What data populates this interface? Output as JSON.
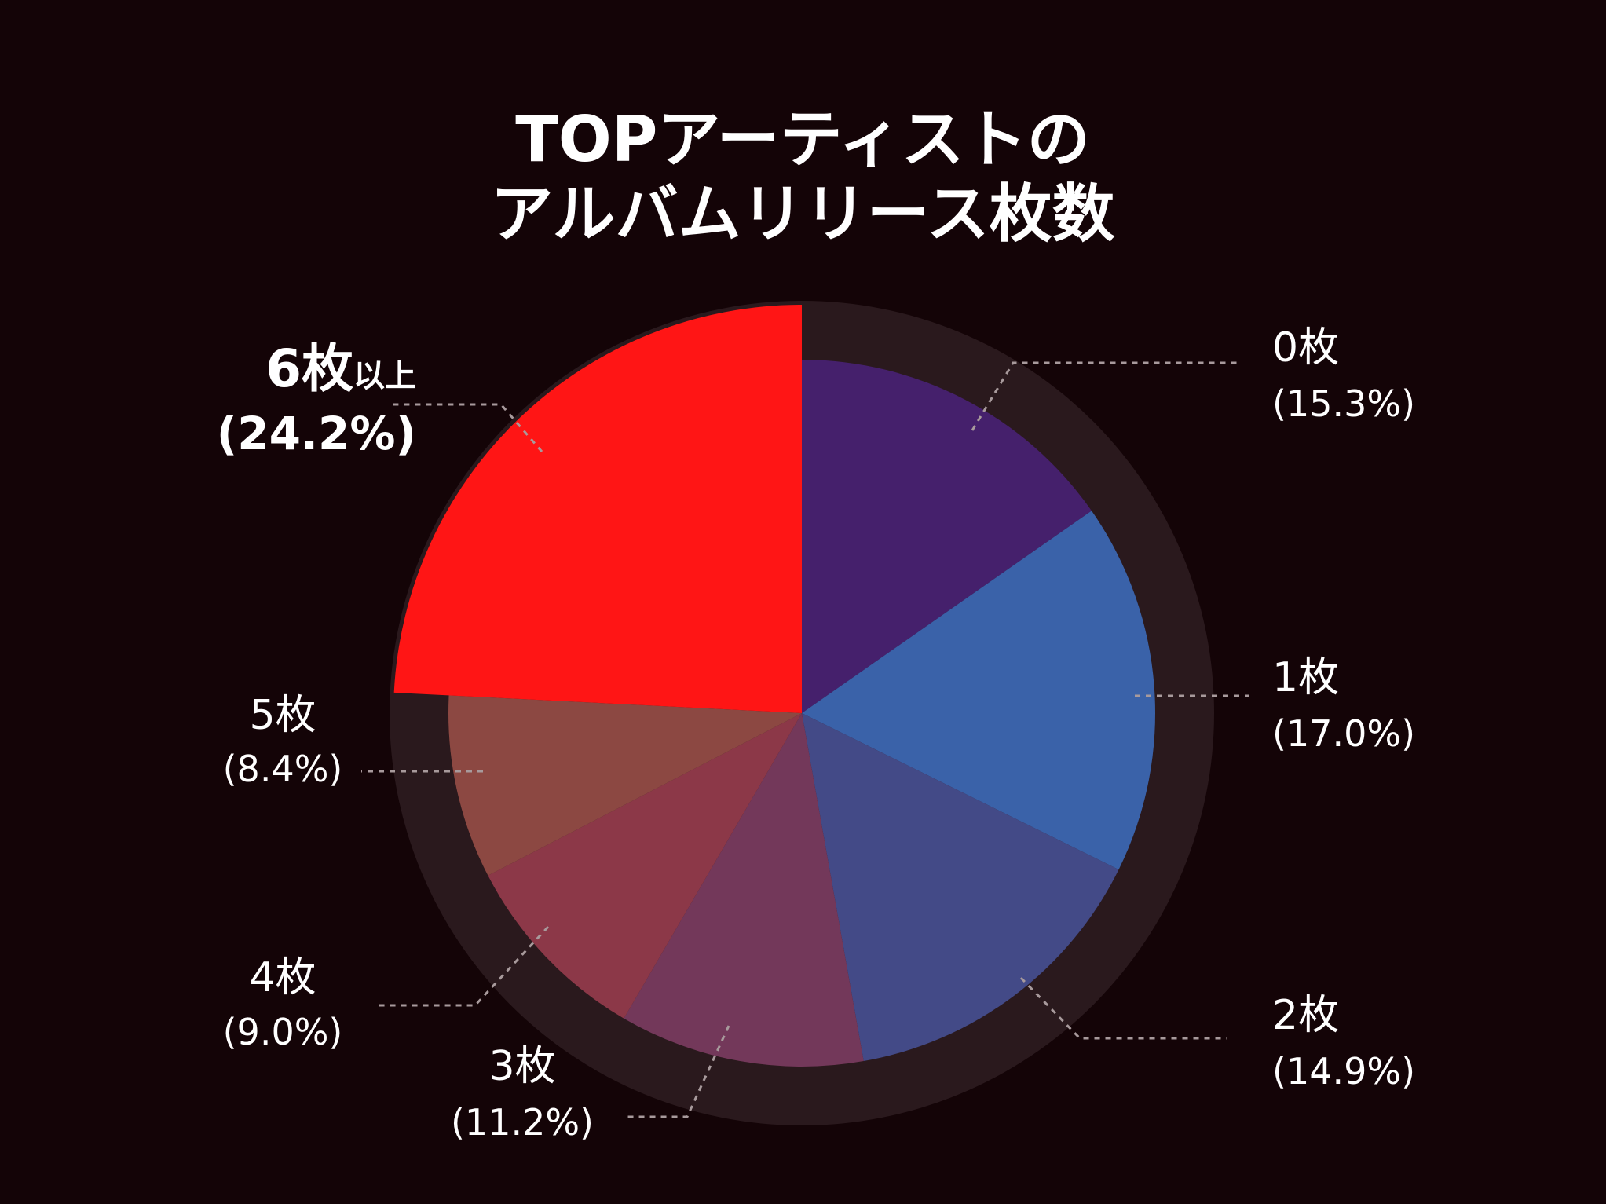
{
  "chart_data": {
    "type": "pie",
    "title_lines": [
      "TOPアーティストの",
      "アルバムリリース枚数"
    ],
    "slices": [
      {
        "label": "0枚",
        "pct_label": "(15.3%)",
        "value": 15.3,
        "color": "#45206c"
      },
      {
        "label": "1枚",
        "pct_label": "(17.0%)",
        "value": 17.0,
        "color": "#3a62a9"
      },
      {
        "label": "2枚",
        "pct_label": "(14.9%)",
        "value": 14.9,
        "color": "#434a87"
      },
      {
        "label": "3枚",
        "pct_label": "(11.2%)",
        "value": 11.2,
        "color": "#73385a"
      },
      {
        "label": "4枚",
        "pct_label": "(9.0%)",
        "value": 9.0,
        "color": "#8c3848"
      },
      {
        "label": "5枚",
        "pct_label": "(8.4%)",
        "value": 8.4,
        "color": "#8c4842"
      },
      {
        "label": "6枚",
        "label_suffix": "以上",
        "pct_label": "(24.2%)",
        "value": 24.2,
        "color": "#ff1515",
        "highlight": true
      }
    ],
    "highlight_color": "#ff1d1d",
    "background_color": "#140407",
    "ring_color": "#2a191d"
  }
}
